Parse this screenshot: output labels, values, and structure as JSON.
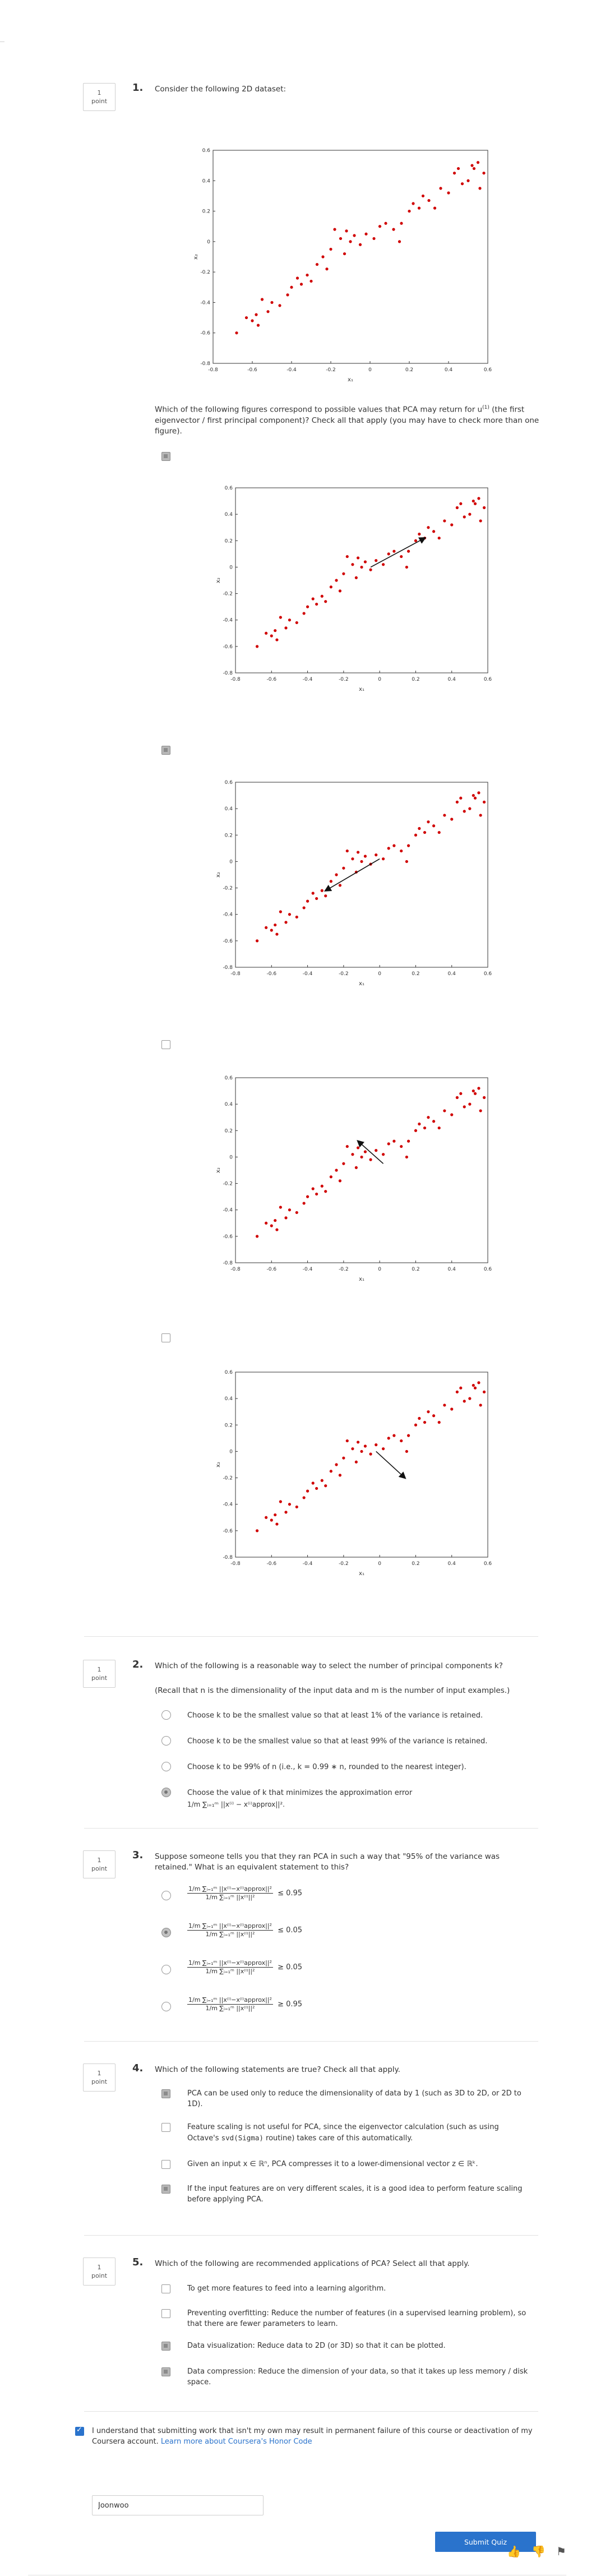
{
  "colors": {
    "accent": "#2a73cc",
    "point": "#d00000",
    "arrow": "#111111"
  },
  "q1": {
    "number": "1.",
    "points": {
      "value": "1",
      "unit": "point"
    },
    "prompt": "Consider the following 2D dataset:",
    "sub_prompt_a": "Which of the following figures correspond to possible values that PCA may return for u",
    "sub_prompt_sup": "(1)",
    "sub_prompt_b": " (the first eigenvector / first principal component)? Check all that apply (you may have to check more than one figure).",
    "options_checked": [
      true,
      true,
      false,
      false
    ]
  },
  "chart_data": [
    {
      "type": "scatter",
      "title": "",
      "xlabel": "x₁",
      "ylabel": "x₂",
      "xlim": [
        -0.8,
        0.6
      ],
      "ylim": [
        -0.8,
        0.6
      ],
      "xticks": [
        "-0.8",
        "-0.6",
        "-0.4",
        "-0.2",
        "0",
        "0.2",
        "0.4",
        "0.6"
      ],
      "yticks": [
        "0.6",
        "0.4",
        "0.2",
        "0",
        "-0.2",
        "-0.4",
        "-0.6",
        "-0.8"
      ],
      "points": [
        [
          -0.68,
          -0.6
        ],
        [
          -0.63,
          -0.5
        ],
        [
          -0.6,
          -0.52
        ],
        [
          -0.57,
          -0.55
        ],
        [
          -0.58,
          -0.48
        ],
        [
          -0.52,
          -0.46
        ],
        [
          -0.55,
          -0.38
        ],
        [
          -0.5,
          -0.4
        ],
        [
          -0.46,
          -0.42
        ],
        [
          -0.42,
          -0.35
        ],
        [
          -0.4,
          -0.3
        ],
        [
          -0.37,
          -0.24
        ],
        [
          -0.35,
          -0.28
        ],
        [
          -0.32,
          -0.22
        ],
        [
          -0.3,
          -0.26
        ],
        [
          -0.27,
          -0.15
        ],
        [
          -0.24,
          -0.1
        ],
        [
          -0.22,
          -0.18
        ],
        [
          -0.2,
          -0.05
        ],
        [
          -0.18,
          0.08
        ],
        [
          -0.15,
          0.02
        ],
        [
          -0.13,
          -0.08
        ],
        [
          -0.12,
          0.07
        ],
        [
          -0.1,
          0.0
        ],
        [
          -0.08,
          0.04
        ],
        [
          -0.05,
          -0.02
        ],
        [
          -0.02,
          0.05
        ],
        [
          0.02,
          0.02
        ],
        [
          0.05,
          0.1
        ],
        [
          0.08,
          0.12
        ],
        [
          0.12,
          0.08
        ],
        [
          0.15,
          0.0
        ],
        [
          0.16,
          0.12
        ],
        [
          0.2,
          0.2
        ],
        [
          0.22,
          0.25
        ],
        [
          0.25,
          0.22
        ],
        [
          0.27,
          0.3
        ],
        [
          0.3,
          0.27
        ],
        [
          0.33,
          0.22
        ],
        [
          0.36,
          0.35
        ],
        [
          0.4,
          0.32
        ],
        [
          0.43,
          0.45
        ],
        [
          0.45,
          0.48
        ],
        [
          0.47,
          0.38
        ],
        [
          0.5,
          0.4
        ],
        [
          0.52,
          0.5
        ],
        [
          0.53,
          0.48
        ],
        [
          0.55,
          0.52
        ],
        [
          0.58,
          0.45
        ],
        [
          0.56,
          0.35
        ]
      ]
    },
    {
      "type": "scatter",
      "xlabel": "x₁",
      "ylabel": "x₂",
      "xlim": [
        -0.8,
        0.6
      ],
      "ylim": [
        -0.8,
        0.6
      ],
      "arrow": {
        "from": [
          -0.05,
          0.0
        ],
        "to": [
          0.25,
          0.22
        ]
      }
    },
    {
      "type": "scatter",
      "xlabel": "x₁",
      "ylabel": "x₂",
      "xlim": [
        -0.8,
        0.6
      ],
      "ylim": [
        -0.8,
        0.6
      ],
      "arrow": {
        "from": [
          0.0,
          0.02
        ],
        "to": [
          -0.3,
          -0.22
        ]
      }
    },
    {
      "type": "scatter",
      "xlabel": "x₁",
      "ylabel": "x₂",
      "xlim": [
        -0.8,
        0.6
      ],
      "ylim": [
        -0.8,
        0.6
      ],
      "arrow": {
        "from": [
          0.02,
          -0.05
        ],
        "to": [
          -0.12,
          0.12
        ]
      }
    },
    {
      "type": "scatter",
      "xlabel": "x₁",
      "ylabel": "x₂",
      "xlim": [
        -0.8,
        0.6
      ],
      "ylim": [
        -0.8,
        0.6
      ],
      "arrow": {
        "from": [
          -0.02,
          0.0
        ],
        "to": [
          0.14,
          -0.2
        ]
      }
    }
  ],
  "q2": {
    "number": "2.",
    "points": {
      "value": "1",
      "unit": "point"
    },
    "prompt": "Which of the following is a reasonable way to select the number of principal components k?",
    "note": "(Recall that n is the dimensionality of the input data and m is the number of input examples.)",
    "options": [
      "Choose k to be the smallest value so that at least 1% of the variance is retained.",
      "Choose k to be the smallest value so that at least 99% of the variance is retained.",
      "Choose k to be 99% of n (i.e., k = 0.99 ∗ n, rounded to the nearest integer).",
      "Choose the value of k that minimizes the approximation error"
    ],
    "option4_formula": "1/m ∑ᵢ₌₁ᵐ ||x⁽ⁱ⁾ − x⁽ⁱ⁾approx||².",
    "selected_index": 3
  },
  "q3": {
    "number": "3.",
    "points": {
      "value": "1",
      "unit": "point"
    },
    "prompt": "Suppose someone tells you that they ran PCA in such a way that \"95% of the variance was retained.\" What is an equivalent statement to this?",
    "numerator": "1/m ∑ᵢ₌₁ᵐ ||x⁽ⁱ⁾−x⁽ⁱ⁾approx||²",
    "denominator": "1/m ∑ᵢ₌₁ᵐ ||x⁽ⁱ⁾||²",
    "options": [
      "≤ 0.95",
      "≤ 0.05",
      "≥ 0.05",
      "≥ 0.95"
    ],
    "selected_index": 1
  },
  "q4": {
    "number": "4.",
    "points": {
      "value": "1",
      "unit": "point"
    },
    "prompt": "Which of the following statements are true? Check all that apply.",
    "options": [
      {
        "text": "PCA can be used only to reduce the dimensionality of data by 1 (such as 3D to 2D, or 2D to 1D).",
        "checked": true
      },
      {
        "text_a": "Feature scaling is not useful for PCA, since the eigenvector calculation (such as using Octave's ",
        "code": "svd(Sigma)",
        "text_b": " routine) takes care of this automatically.",
        "checked": false
      },
      {
        "text": "Given an input x ∈ ℝⁿ, PCA compresses it to a lower-dimensional vector z ∈ ℝᵏ.",
        "checked": false
      },
      {
        "text": "If the input features are on very different scales, it is a good idea to perform feature scaling before applying PCA.",
        "checked": true
      }
    ]
  },
  "q5": {
    "number": "5.",
    "points": {
      "value": "1",
      "unit": "point"
    },
    "prompt": "Which of the following are recommended applications of PCA? Select all that apply.",
    "options": [
      {
        "text": "To get more features to feed into a learning algorithm.",
        "checked": false
      },
      {
        "text": "Preventing overfitting: Reduce the number of features (in a supervised learning problem), so that there are fewer parameters to learn.",
        "checked": false
      },
      {
        "text": "Data visualization: Reduce data to 2D (or 3D) so that it can be plotted.",
        "checked": true
      },
      {
        "text": "Data compression: Reduce the dimension of your data, so that it takes up less memory / disk space.",
        "checked": true
      }
    ]
  },
  "honor": {
    "text": "I understand that submitting work that isn't my own may result in permanent failure of this course or deactivation of my Coursera account. ",
    "link": "Learn more about Coursera's Honor Code",
    "name_value": "Joonwoo",
    "checked": true
  },
  "submit_label": "Submit Quiz",
  "feedback": {
    "like": "👍",
    "dislike": "👎",
    "flag": "⚑"
  }
}
